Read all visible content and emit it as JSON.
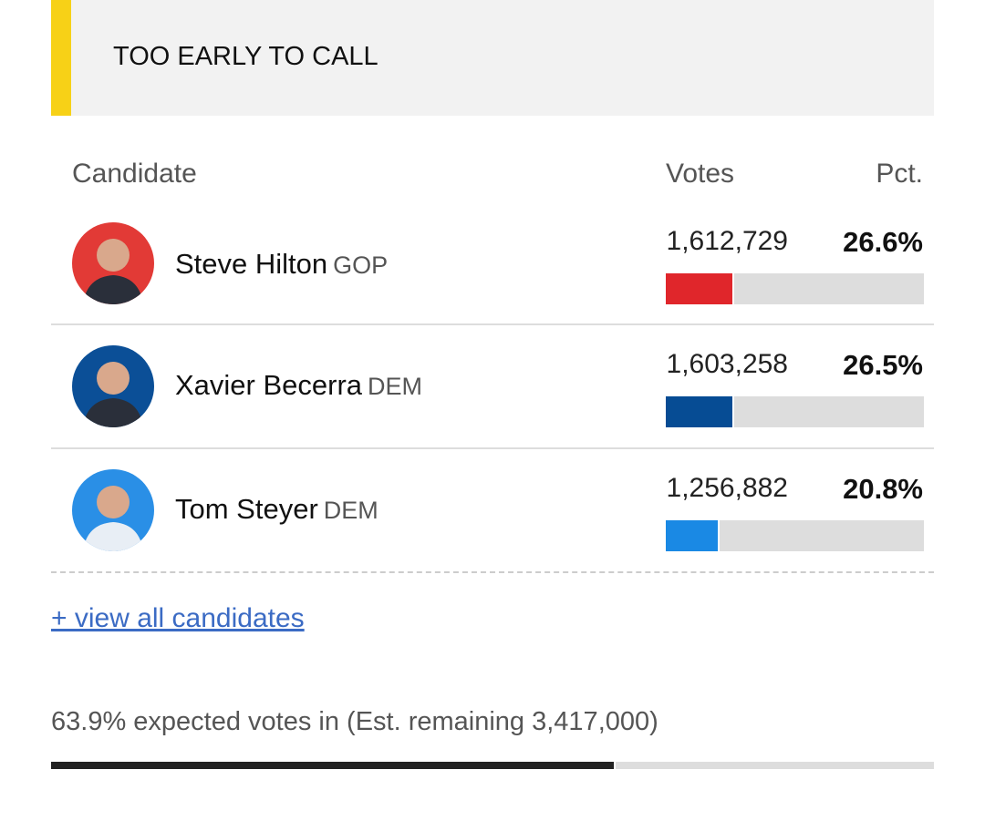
{
  "header": {
    "status": "TOO EARLY TO CALL"
  },
  "table": {
    "columns": [
      "Candidate",
      "Votes",
      "Pct."
    ],
    "candidates": [
      {
        "name": "Steve Hilton",
        "party": "GOP",
        "votes": "1,612,729",
        "pct": {
          "value": 26.6,
          "label": "26.6%"
        },
        "color": "#e0262b"
      },
      {
        "name": "Xavier Becerra",
        "party": "DEM",
        "votes": "1,603,258",
        "pct": {
          "value": 26.5,
          "label": "26.5%"
        },
        "color": "#064c94"
      },
      {
        "name": "Tom Steyer",
        "party": "DEM",
        "votes": "1,256,882",
        "pct": {
          "value": 20.8,
          "label": "20.8%"
        },
        "color": "#1a89e4"
      }
    ]
  },
  "link": "+ view all candidates",
  "footer": {
    "expected": {
      "value": 63.9,
      "label": "63.9%"
    },
    "text": " expected votes in (Est. remaining 3,417,000)"
  }
}
